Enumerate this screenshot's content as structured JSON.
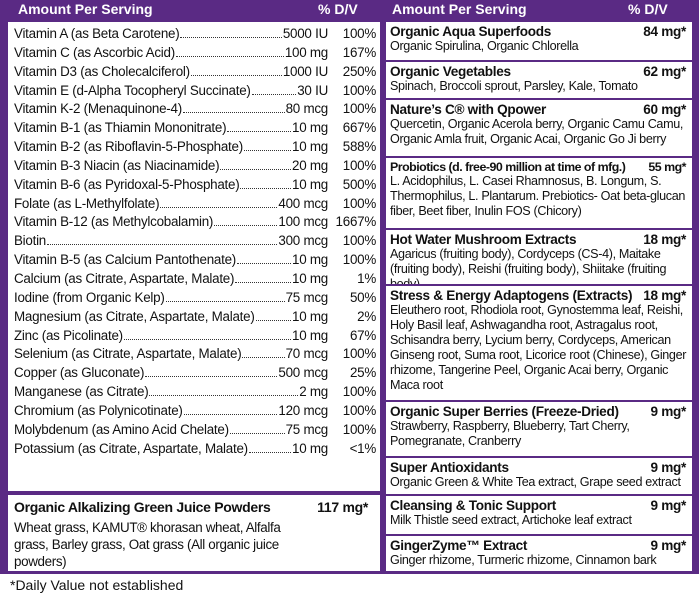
{
  "header": {
    "left": {
      "amount": "Amount Per Serving",
      "dv": "% D/V"
    },
    "right": {
      "amount": "Amount Per Serving",
      "dv": "% D/V"
    }
  },
  "nutrients": [
    {
      "name": "Vitamin A (as Beta Carotene)",
      "amount": "5000 IU",
      "dv": "100%"
    },
    {
      "name": "Vitamin C (as Ascorbic Acid)",
      "amount": "100 mg",
      "dv": "167%"
    },
    {
      "name": "Vitamin D3 (as Cholecalciferol)",
      "amount": "1000 IU",
      "dv": "250%"
    },
    {
      "name": "Vitamin E (d-Alpha Tocopheryl Succinate)",
      "amount": "30 IU",
      "dv": "100%"
    },
    {
      "name": "Vitamin K-2 (Menaquinone-4)",
      "amount": "80 mcg",
      "dv": "100%"
    },
    {
      "name": "Vitamin B-1 (as Thiamin Mononitrate)",
      "amount": "10 mg",
      "dv": "667%"
    },
    {
      "name": "Vitamin B-2 (as Riboflavin-5-Phosphate)",
      "amount": "10 mg",
      "dv": "588%"
    },
    {
      "name": "Vitamin B-3 Niacin (as Niacinamide)",
      "amount": "20 mg",
      "dv": "100%"
    },
    {
      "name": "Vitamin B-6 (as Pyridoxal-5-Phosphate)",
      "amount": "10 mg",
      "dv": "500%"
    },
    {
      "name": "Folate (as L-Methylfolate)",
      "amount": "400 mcg",
      "dv": "100%"
    },
    {
      "name": "Vitamin B-12 (as Methylcobalamin)",
      "amount": "100 mcg",
      "dv": "1667%"
    },
    {
      "name": "Biotin",
      "amount": "300 mcg",
      "dv": "100%"
    },
    {
      "name": "Vitamin B-5 (as Calcium Pantothenate)",
      "amount": "10 mg",
      "dv": "100%"
    },
    {
      "name": "Calcium (as Citrate, Aspartate, Malate)",
      "amount": "10 mg",
      "dv": "1%"
    },
    {
      "name": "Iodine (from Organic Kelp)",
      "amount": "75 mcg",
      "dv": "50%"
    },
    {
      "name": "Magnesium (as Citrate, Aspartate, Malate)",
      "amount": "10 mg",
      "dv": "2%"
    },
    {
      "name": "Zinc (as Picolinate)",
      "amount": "10 mg",
      "dv": "67%"
    },
    {
      "name": "Selenium (as Citrate, Aspartate, Malate)",
      "amount": "70 mcg",
      "dv": "100%"
    },
    {
      "name": "Copper (as Gluconate)",
      "amount": "500 mcg",
      "dv": "25%"
    },
    {
      "name": "Manganese (as Citrate)",
      "amount": "2 mg",
      "dv": "100%"
    },
    {
      "name": "Chromium (as Polynicotinate)",
      "amount": "120 mcg",
      "dv": "100%"
    },
    {
      "name": "Molybdenum (as Amino Acid Chelate)",
      "amount": "75 mcg",
      "dv": "100%"
    },
    {
      "name": "Potassium (as Citrate, Aspartate, Malate)",
      "amount": "10 mg",
      "dv": "<1%"
    }
  ],
  "left_section": {
    "title": "Organic Alkalizing Green Juice Powders",
    "amount": "117 mg*",
    "description": "Wheat grass, KAMUT® khorasan wheat, Alfalfa grass, Barley grass, Oat grass (All organic juice powders)"
  },
  "sections": [
    {
      "title": "Organic Aqua Superfoods",
      "amount": "84 mg*",
      "description": "Organic Spirulina, Organic Chlorella"
    },
    {
      "title": "Organic Vegetables",
      "amount": "62 mg*",
      "description": "Spinach, Broccoli sprout, Parsley, Kale, Tomato"
    },
    {
      "title": "Nature’s C® with Qpower",
      "amount": "60 mg*",
      "description": "Quercetin, Organic Acerola berry, Organic Camu Camu, Organic Amla fruit, Organic Acai, Organic Go Ji berry"
    },
    {
      "title": "Probiotics (d. free-90 million at time of mfg.)",
      "amount": "55 mg*",
      "description": "L. Acidophilus, L. Casei Rhamnosus, B. Longum, S. Thermophilus, L. Plantarum. Prebiotics- Oat beta-glucan fiber, Beet fiber, Inulin FOS (Chicory)"
    },
    {
      "title": "Hot Water Mushroom Extracts",
      "amount": "18 mg*",
      "description": "Agaricus (fruiting body), Cordyceps (CS-4), Maitake (fruiting body), Reishi (fruiting body), Shiitake (fruiting body)"
    },
    {
      "title": "Stress & Energy Adaptogens (Extracts)",
      "amount": "18 mg*",
      "description": "Eleuthero root, Rhodiola root, Gynostemma leaf, Reishi, Holy Basil leaf, Ashwagandha root, Astragalus root, Schisandra berry, Lycium berry, Cordyceps, American Ginseng root, Suma root, Licorice root (Chinese), Ginger rhizome, Tangerine Peel, Organic Acai berry, Organic Maca root"
    },
    {
      "title": "Organic Super Berries (Freeze-Dried)",
      "amount": "9 mg*",
      "description": "Strawberry, Raspberry, Blueberry, Tart Cherry, Pomegranate, Cranberry"
    },
    {
      "title": "Super Antioxidants",
      "amount": "9 mg*",
      "description": "Organic Green & White Tea extract, Grape seed extract"
    },
    {
      "title": "Cleansing & Tonic Support",
      "amount": "9 mg*",
      "description": "Milk Thistle seed extract, Artichoke leaf extract"
    },
    {
      "title": "GingerZyme™ Extract",
      "amount": "9 mg*",
      "description": "Ginger rhizome, Turmeric rhizome, Cinnamon bark"
    }
  ],
  "footnote": "*Daily Value not established"
}
